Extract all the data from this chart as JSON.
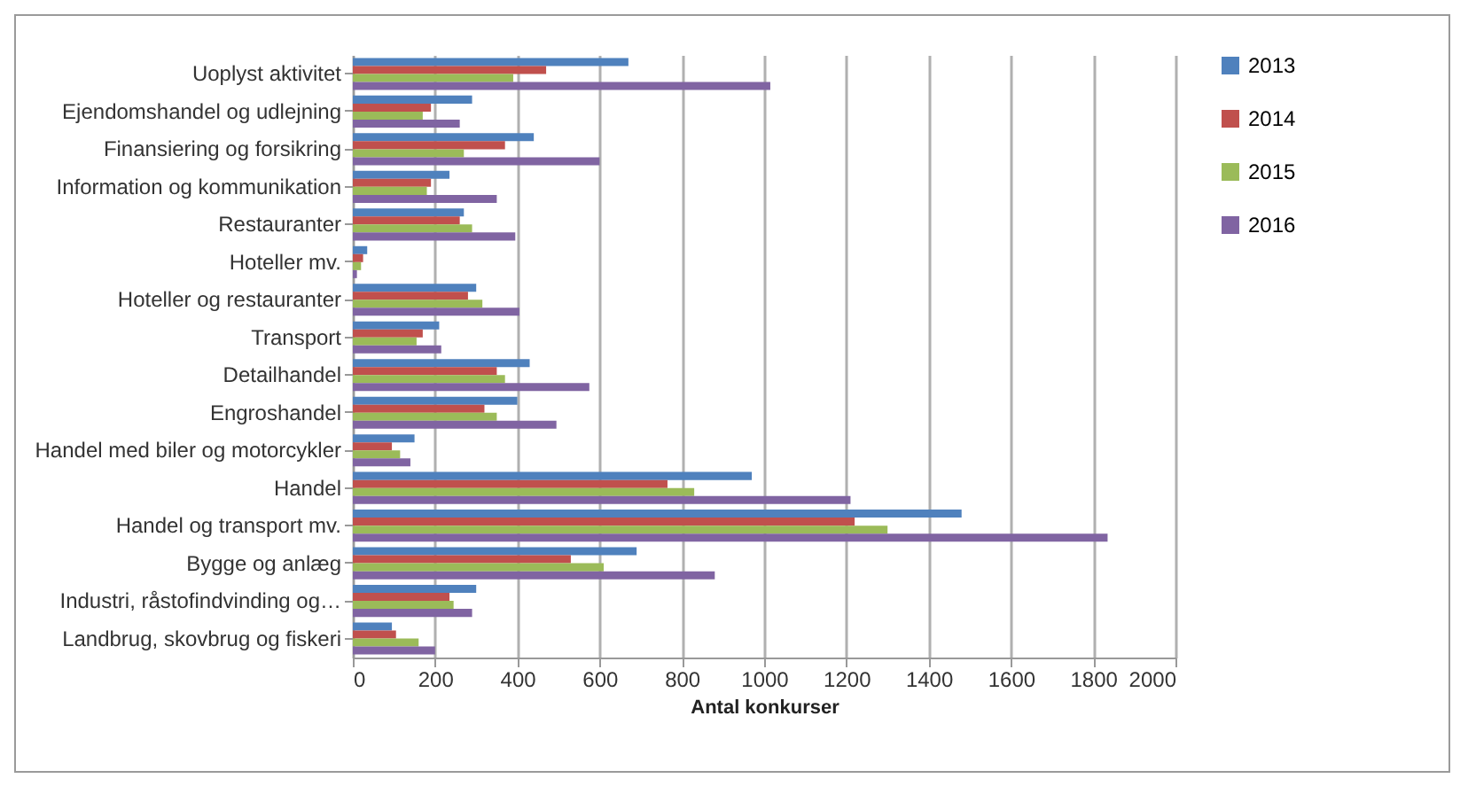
{
  "chart_data": {
    "type": "bar",
    "orientation": "horizontal",
    "xlabel": "Antal konkurser",
    "categories": [
      "Uoplyst aktivitet",
      "Ejendomshandel og udlejning",
      "Finansiering og forsikring",
      "Information og kommunikation",
      "Restauranter",
      "Hoteller mv.",
      "Hoteller og restauranter",
      "Transport",
      "Detailhandel",
      "Engroshandel",
      "Handel med biler og motorcykler",
      "Handel",
      "Handel og transport mv.",
      "Bygge og anlæg",
      "Industri, råstofindvinding og…",
      "Landbrug, skovbrug og fiskeri"
    ],
    "series": [
      {
        "name": "2013",
        "color": "#4f81bd",
        "values": [
          670,
          290,
          440,
          235,
          270,
          35,
          300,
          210,
          430,
          400,
          150,
          970,
          1480,
          690,
          300,
          95
        ]
      },
      {
        "name": "2014",
        "color": "#c0504d",
        "values": [
          470,
          190,
          370,
          190,
          260,
          25,
          280,
          170,
          350,
          320,
          95,
          765,
          1220,
          530,
          235,
          105
        ]
      },
      {
        "name": "2015",
        "color": "#9bbb59",
        "values": [
          390,
          170,
          270,
          180,
          290,
          20,
          315,
          155,
          370,
          350,
          115,
          830,
          1300,
          610,
          245,
          160
        ]
      },
      {
        "name": "2016",
        "color": "#8064a2",
        "values": [
          1015,
          260,
          600,
          350,
          395,
          10,
          405,
          215,
          575,
          495,
          140,
          1210,
          1835,
          880,
          290,
          200
        ]
      }
    ],
    "xlim": [
      0,
      2000
    ],
    "xticks": [
      0,
      200,
      400,
      600,
      800,
      1000,
      1200,
      1400,
      1600,
      1800,
      2000
    ],
    "grid": "x",
    "legend": "right"
  }
}
